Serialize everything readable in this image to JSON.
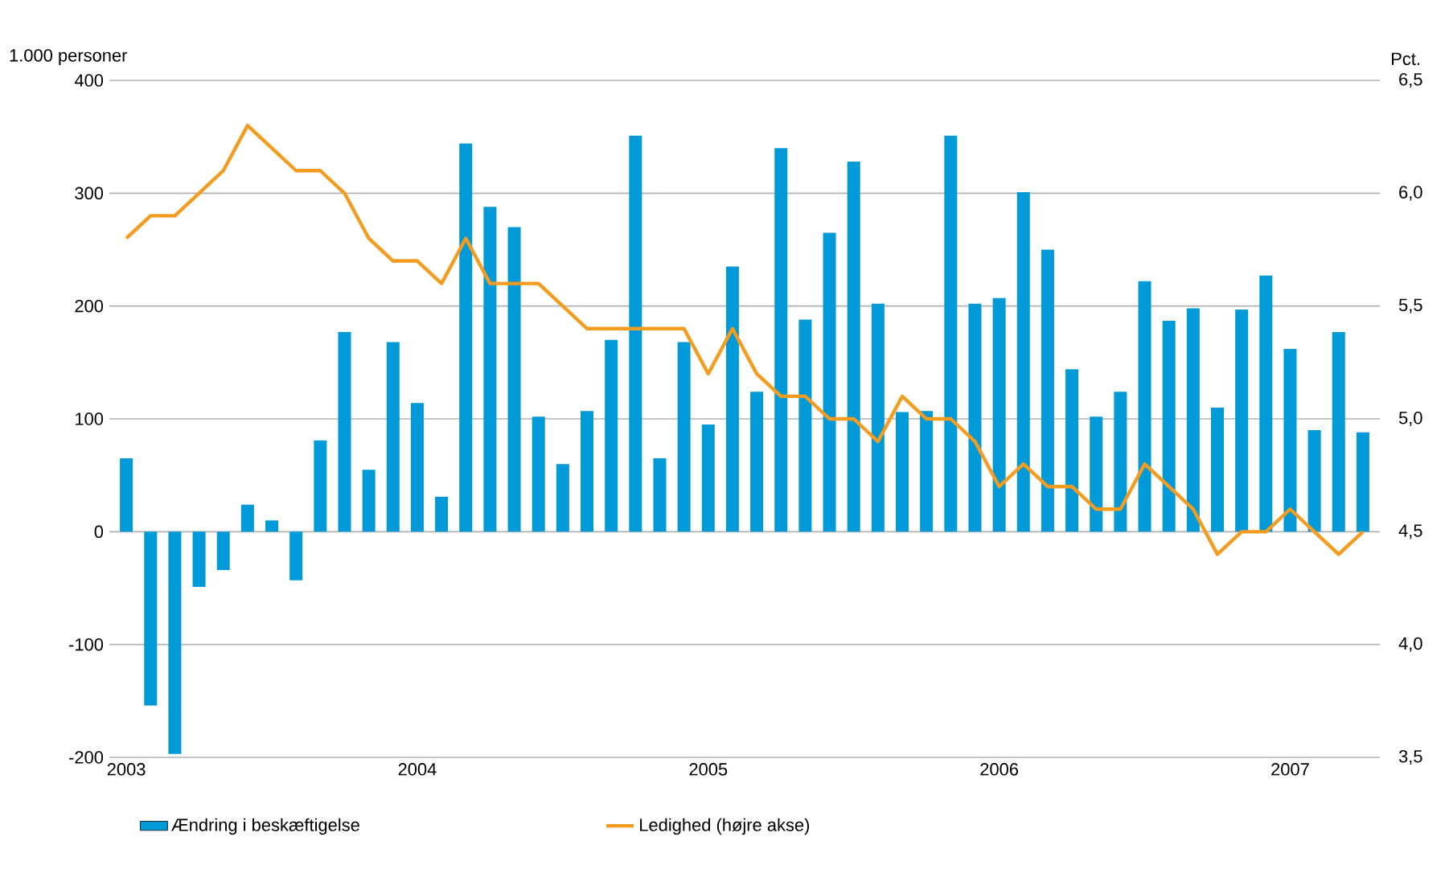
{
  "chart_data": {
    "type": "bar",
    "ylabel": "1.000 personer",
    "y2label": "Pct.",
    "categories": [
      "2003",
      null,
      null,
      null,
      null,
      null,
      null,
      null,
      null,
      null,
      null,
      null,
      "2004",
      null,
      null,
      null,
      null,
      null,
      null,
      null,
      null,
      null,
      null,
      null,
      "2005",
      null,
      null,
      null,
      null,
      null,
      null,
      null,
      null,
      null,
      null,
      null,
      "2006",
      null,
      null,
      null,
      null,
      null,
      null,
      null,
      null,
      null,
      null,
      null,
      "2007",
      null,
      null,
      null
    ],
    "ylim": [
      -200,
      400
    ],
    "yticks": [
      -200,
      -100,
      0,
      100,
      200,
      300,
      400
    ],
    "y2lim": [
      3.5,
      6.5
    ],
    "y2ticks": [
      {
        "value": 3.5,
        "label": "3,5"
      },
      {
        "value": 4.0,
        "label": "4,0"
      },
      {
        "value": 4.5,
        "label": "4,5"
      },
      {
        "value": 5.0,
        "label": "5,0"
      },
      {
        "value": 5.5,
        "label": "5,5"
      },
      {
        "value": 6.0,
        "label": "6,0"
      },
      {
        "value": 6.5,
        "label": "6,5"
      }
    ],
    "grid": "y",
    "legend": "bottom",
    "series": [
      {
        "name": "Ændring i beskæftigelse",
        "color": "#009ad8",
        "values": [
          65,
          -154,
          -197,
          -49,
          -34,
          24,
          10,
          -43,
          81,
          177,
          55,
          168,
          114,
          31,
          344,
          288,
          270,
          102,
          60,
          107,
          170,
          351,
          65,
          168,
          95,
          235,
          124,
          340,
          188,
          265,
          328,
          202,
          106,
          107,
          351,
          202,
          207,
          301,
          250,
          144,
          102,
          124,
          222,
          187,
          198,
          110,
          197,
          227,
          162,
          90,
          177,
          88
        ]
      },
      {
        "name": "Ledighed (højre akse)",
        "type": "line",
        "axis": "y2",
        "color": "#f39c1f",
        "values": [
          5.8,
          5.9,
          5.9,
          6.0,
          6.1,
          6.3,
          6.2,
          6.1,
          6.1,
          6.0,
          5.8,
          5.7,
          5.7,
          5.6,
          5.8,
          5.6,
          5.6,
          5.6,
          5.5,
          5.4,
          5.4,
          5.4,
          5.4,
          5.4,
          5.2,
          5.4,
          5.2,
          5.1,
          5.1,
          5.0,
          5.0,
          4.9,
          5.1,
          5.0,
          5.0,
          4.9,
          4.7,
          4.8,
          4.7,
          4.7,
          4.6,
          4.6,
          4.8,
          4.7,
          4.6,
          4.4,
          4.5,
          4.5,
          4.6,
          4.5,
          4.4,
          4.5
        ]
      }
    ]
  }
}
